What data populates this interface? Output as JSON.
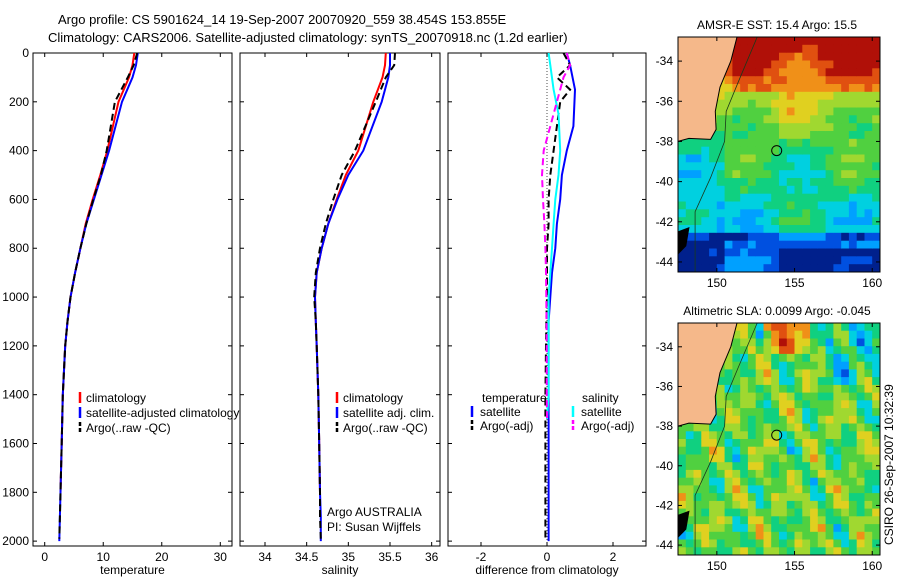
{
  "header": {
    "line1": "Argo profile: CS 5901624_14 19-Sep-2007 20070920_559 38.454S 153.855E",
    "line2": "Climatology: CARS2006. Satellite-adjusted climatology: synTS_20070918.nc (1.2d earlier)"
  },
  "colors": {
    "climatology": "#ff0000",
    "satellite": "#0000ff",
    "argo": "#000000",
    "salinity_satellite": "#00ffff",
    "salinity_argo": "#ff00ff",
    "land": "#f5b88a"
  },
  "chart_data": [
    {
      "type": "line",
      "panel": "temperature",
      "xlabel": "temperature",
      "ylabel": "",
      "xlim": [
        -2,
        32
      ],
      "ylim": [
        2020,
        0
      ],
      "xticks": [
        0,
        10,
        20,
        30
      ],
      "yticks": [
        0,
        200,
        400,
        600,
        800,
        1000,
        1200,
        1400,
        1600,
        1800,
        2000
      ],
      "legend": {
        "position": "lower-right",
        "entries": [
          "climatology",
          "satellite-adjusted climatology",
          "Argo(..raw -QC)"
        ]
      },
      "series": [
        {
          "name": "climatology",
          "color": "#ff0000",
          "dash": "solid",
          "x": [
            15.3,
            15.0,
            14.4,
            12.6,
            10.7,
            9.5,
            8.2,
            7.0,
            6.1,
            5.2,
            4.4,
            3.9,
            3.5,
            3.1,
            2.9,
            2.7
          ],
          "y": [
            0,
            50,
            100,
            200,
            400,
            500,
            600,
            700,
            800,
            900,
            1000,
            1100,
            1200,
            1400,
            1600,
            1800
          ]
        },
        {
          "name": "satellite-adjusted climatology",
          "color": "#0000ff",
          "dash": "solid",
          "x": [
            15.9,
            15.6,
            15.0,
            13.2,
            11.0,
            9.7,
            8.4,
            7.1,
            6.1,
            5.2,
            4.4,
            3.9,
            3.5,
            3.1,
            2.9,
            2.7,
            2.6,
            2.5
          ],
          "y": [
            0,
            50,
            100,
            200,
            400,
            500,
            600,
            700,
            800,
            900,
            1000,
            1100,
            1200,
            1400,
            1600,
            1800,
            1900,
            2000
          ]
        },
        {
          "name": "Argo(..raw -QC)",
          "color": "#000000",
          "dash": "dashed",
          "x": [
            15.8,
            15.2,
            14.2,
            12.0,
            10.6,
            9.6,
            8.3,
            7.1,
            6.1,
            5.2,
            4.4,
            3.9,
            3.5,
            3.1,
            2.9,
            2.7,
            2.6,
            2.5
          ],
          "y": [
            0,
            50,
            100,
            200,
            400,
            500,
            600,
            700,
            800,
            900,
            1000,
            1100,
            1200,
            1400,
            1600,
            1800,
            1900,
            1990
          ]
        }
      ]
    },
    {
      "type": "line",
      "panel": "salinity",
      "xlabel": "salinity",
      "ylabel": "",
      "xlim": [
        33.7,
        36.1
      ],
      "ylim": [
        2020,
        0
      ],
      "xticks": [
        34,
        34.5,
        35,
        35.5,
        36
      ],
      "legend": {
        "position": "lower-right",
        "entries": [
          "climatology",
          "satellite adj. clim.",
          "Argo(..raw -QC)"
        ]
      },
      "annotation": [
        "Argo AUSTRALIA",
        "PI: Susan Wijffels"
      ],
      "series": [
        {
          "name": "climatology",
          "color": "#ff0000",
          "dash": "solid",
          "x": [
            35.45,
            35.44,
            35.41,
            35.3,
            35.12,
            34.97,
            34.86,
            34.76,
            34.68,
            34.62,
            34.6,
            34.61,
            34.62,
            34.64,
            34.65,
            34.66
          ],
          "y": [
            0,
            50,
            100,
            200,
            400,
            500,
            600,
            700,
            800,
            900,
            1000,
            1100,
            1200,
            1400,
            1600,
            1800
          ]
        },
        {
          "name": "satellite adj. clim.",
          "color": "#0000ff",
          "dash": "solid",
          "x": [
            35.5,
            35.5,
            35.48,
            35.4,
            35.18,
            35.0,
            34.87,
            34.76,
            34.68,
            34.62,
            34.6,
            34.61,
            34.62,
            34.64,
            34.65,
            34.66,
            34.67,
            34.67
          ],
          "y": [
            0,
            50,
            100,
            200,
            400,
            500,
            600,
            700,
            800,
            900,
            1000,
            1100,
            1200,
            1400,
            1600,
            1800,
            1900,
            2000
          ]
        },
        {
          "name": "Argo(..raw -QC)",
          "color": "#000000",
          "dash": "dashed",
          "x": [
            35.56,
            35.55,
            35.45,
            35.33,
            35.08,
            34.92,
            34.82,
            34.73,
            34.66,
            34.61,
            34.59,
            34.61,
            34.62,
            34.64,
            34.65,
            34.66,
            34.66,
            34.67
          ],
          "y": [
            0,
            50,
            100,
            200,
            400,
            500,
            600,
            700,
            800,
            900,
            1000,
            1100,
            1200,
            1400,
            1600,
            1800,
            1900,
            1990
          ]
        }
      ]
    },
    {
      "type": "line",
      "panel": "difference",
      "xlabel": "difference from climatology",
      "ylabel": "",
      "xlim": [
        -3.0,
        3.0
      ],
      "ylim": [
        2020,
        0
      ],
      "xticks": [
        -2,
        0,
        2
      ],
      "legend": {
        "position": "lower-center",
        "groups": [
          "temperature",
          "salinity"
        ],
        "entries": [
          "satellite",
          "Argo(-adj)",
          "satellite",
          "Argo(-adj)"
        ]
      },
      "series": [
        {
          "name": "temperature satellite",
          "color": "#0000ff",
          "dash": "solid",
          "x": [
            0.6,
            0.7,
            0.85,
            0.8,
            0.6,
            0.45,
            0.4,
            0.3,
            0.25,
            0.15,
            0.1,
            0.05,
            0.05,
            0.05,
            0.05,
            0.05,
            0.05,
            0.05
          ],
          "y": [
            0,
            50,
            150,
            300,
            400,
            500,
            600,
            700,
            800,
            900,
            1000,
            1100,
            1200,
            1400,
            1600,
            1800,
            1900,
            2000
          ]
        },
        {
          "name": "temperature Argo(-adj)",
          "color": "#000000",
          "dash": "dashed",
          "x": [
            0.5,
            0.7,
            0.3,
            0.7,
            0.4,
            0.2,
            0.1,
            0.05,
            0.05,
            0.0,
            0.0,
            -0.02,
            -0.03,
            -0.05,
            -0.05,
            -0.05,
            -0.05,
            -0.05
          ],
          "y": [
            0,
            50,
            100,
            150,
            200,
            400,
            500,
            600,
            700,
            800,
            1000,
            1100,
            1200,
            1400,
            1600,
            1800,
            1900,
            2000
          ]
        },
        {
          "name": "salinity satellite",
          "color": "#00ffff",
          "dash": "solid",
          "x": [
            0.05,
            0.1,
            0.2,
            0.35,
            0.4,
            0.35,
            0.25,
            0.2,
            0.15,
            0.1,
            0.05,
            0.05,
            0.05,
            0.05,
            0.0
          ],
          "y": [
            0,
            50,
            150,
            250,
            400,
            500,
            600,
            700,
            800,
            900,
            1000,
            1100,
            1200,
            1400,
            1500
          ]
        },
        {
          "name": "salinity Argo(-adj)",
          "color": "#ff00ff",
          "dash": "dashed",
          "x": [
            0.6,
            0.7,
            0.5,
            0.3,
            0.1,
            -0.1,
            -0.15,
            -0.12,
            -0.08,
            -0.05,
            -0.03,
            -0.02,
            -0.01,
            -0.01,
            0.0
          ],
          "y": [
            0,
            50,
            100,
            200,
            300,
            400,
            500,
            600,
            700,
            800,
            900,
            1000,
            1200,
            1400,
            1500
          ]
        }
      ]
    },
    {
      "type": "heatmap",
      "panel": "sst-map",
      "title": "AMSR-E SST: 15.4 Argo: 15.5",
      "xlim": [
        147.5,
        160.5
      ],
      "ylim": [
        -44.5,
        -32.8
      ],
      "xticks": [
        150,
        155,
        160
      ],
      "yticks": [
        -34,
        -36,
        -38,
        -40,
        -42,
        -44
      ],
      "argo_location": {
        "lon": 153.855,
        "lat": -38.454
      },
      "palette": [
        "#00208c",
        "#0050e0",
        "#00a0ff",
        "#00d0e0",
        "#10d080",
        "#50d040",
        "#a0d830",
        "#e0d020",
        "#f09018",
        "#e05010",
        "#b01008"
      ]
    },
    {
      "type": "heatmap",
      "panel": "sla-map",
      "title": "Altimetric SLA: 0.0099 Argo: -0.045",
      "xlim": [
        147.5,
        160.5
      ],
      "ylim": [
        -44.5,
        -32.8
      ],
      "xticks": [
        150,
        155,
        160
      ],
      "yticks": [
        -34,
        -36,
        -38,
        -40,
        -42,
        -44
      ],
      "argo_location": {
        "lon": 153.855,
        "lat": -38.454
      },
      "palette": [
        "#00208c",
        "#0050e0",
        "#00a0ff",
        "#00d0e0",
        "#10d080",
        "#50d040",
        "#a0d830",
        "#e0d020",
        "#f09018",
        "#e05010",
        "#b01008"
      ]
    }
  ],
  "footer": {
    "stamp": "CSIRO 26-Sep-2007 10:32:39"
  }
}
